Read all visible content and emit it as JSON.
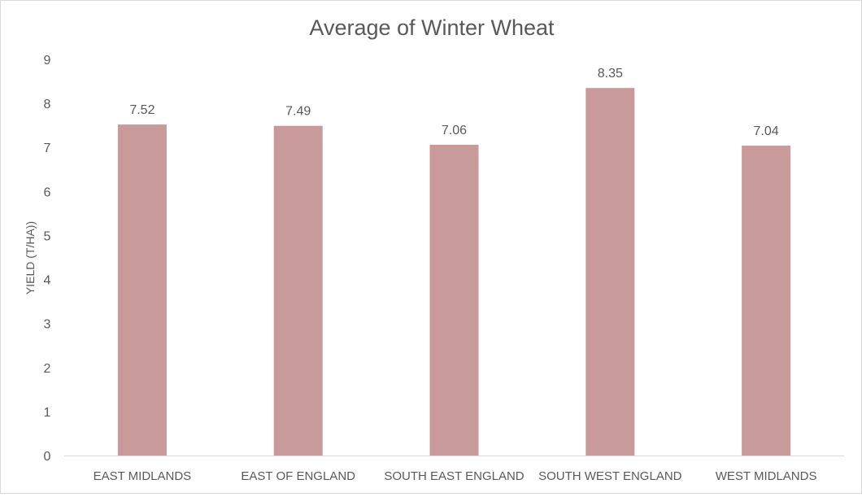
{
  "chart_data": {
    "type": "bar",
    "title": "Average of Winter Wheat",
    "xlabel": "",
    "ylabel": "YIELD (T/HA))",
    "categories": [
      "EAST MIDLANDS",
      "EAST OF ENGLAND",
      "SOUTH EAST ENGLAND",
      "SOUTH WEST ENGLAND",
      "WEST MIDLANDS"
    ],
    "values": [
      7.52,
      7.49,
      7.06,
      8.35,
      7.04
    ],
    "data_labels": [
      "7.52",
      "7.49",
      "7.06",
      "8.35",
      "7.04"
    ],
    "ylim": [
      0,
      9
    ],
    "yticks": [
      "0",
      "1",
      "2",
      "3",
      "4",
      "5",
      "6",
      "7",
      "8",
      "9"
    ],
    "grid": false,
    "legend": "none",
    "bar_color": "#c89a99",
    "axis_color": "#d9d9d9",
    "text_color": "#595959"
  }
}
